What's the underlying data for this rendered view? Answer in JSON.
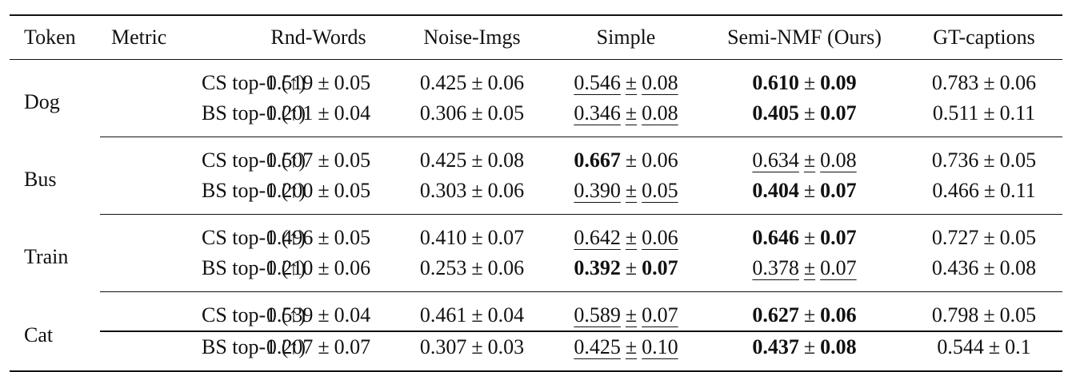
{
  "table": {
    "columns": [
      "Token",
      "Metric",
      "Rnd-Words",
      "Noise-Imgs",
      "Simple",
      "Semi-NMF (Ours)",
      "GT-captions"
    ],
    "pm_symbol": "±",
    "groups": [
      {
        "token": "Dog",
        "rows": [
          {
            "metric": "CS top-1 (↑)",
            "cells": [
              {
                "mean": "0.519",
                "std": "0.05"
              },
              {
                "mean": "0.425",
                "std": "0.06"
              },
              {
                "mean": "0.546",
                "std": "0.08",
                "underline": true
              },
              {
                "mean": "0.610",
                "std": "0.09",
                "bold_mean": true,
                "bold_std": true
              },
              {
                "mean": "0.783",
                "std": "0.06"
              }
            ]
          },
          {
            "metric": "BS top-1 (↑)",
            "cells": [
              {
                "mean": "0.201",
                "std": "0.04"
              },
              {
                "mean": "0.306",
                "std": "0.05"
              },
              {
                "mean": "0.346",
                "std": "0.08",
                "underline": true
              },
              {
                "mean": "0.405",
                "std": "0.07",
                "bold_mean": true,
                "bold_std": true
              },
              {
                "mean": "0.511",
                "std": "0.11"
              }
            ]
          }
        ]
      },
      {
        "token": "Bus",
        "rows": [
          {
            "metric": "CS top-1 (↑)",
            "cells": [
              {
                "mean": "0.507",
                "std": "0.05"
              },
              {
                "mean": "0.425",
                "std": "0.08"
              },
              {
                "mean": "0.667",
                "std": "0.06",
                "bold_mean": true
              },
              {
                "mean": "0.634",
                "std": "0.08",
                "underline": true
              },
              {
                "mean": "0.736",
                "std": "0.05"
              }
            ]
          },
          {
            "metric": "BS top-1 (↑)",
            "cells": [
              {
                "mean": "0.200",
                "std": "0.05"
              },
              {
                "mean": "0.303",
                "std": "0.06"
              },
              {
                "mean": "0.390",
                "std": "0.05",
                "underline": true
              },
              {
                "mean": "0.404",
                "std": "0.07",
                "bold_mean": true,
                "bold_std": true
              },
              {
                "mean": "0.466",
                "std": "0.11"
              }
            ]
          }
        ]
      },
      {
        "token": "Train",
        "rows": [
          {
            "metric": "CS top-1 (↑)",
            "cells": [
              {
                "mean": "0.496",
                "std": "0.05"
              },
              {
                "mean": "0.410",
                "std": "0.07"
              },
              {
                "mean": "0.642",
                "std": "0.06",
                "underline": true
              },
              {
                "mean": "0.646",
                "std": "0.07",
                "bold_mean": true,
                "bold_std": true
              },
              {
                "mean": "0.727",
                "std": "0.05"
              }
            ]
          },
          {
            "metric": "BS top-1 (↑)",
            "cells": [
              {
                "mean": "0.210",
                "std": "0.06"
              },
              {
                "mean": "0.253",
                "std": "0.06"
              },
              {
                "mean": "0.392",
                "std": "0.07",
                "bold_mean": true,
                "bold_std": true
              },
              {
                "mean": "0.378",
                "std": "0.07",
                "underline": true
              },
              {
                "mean": "0.436",
                "std": "0.08"
              }
            ]
          }
        ]
      },
      {
        "token": "Cat",
        "rows": [
          {
            "metric": "CS top-1 (↑)",
            "cells": [
              {
                "mean": "0.539",
                "std": "0.04"
              },
              {
                "mean": "0.461",
                "std": "0.04"
              },
              {
                "mean": "0.589",
                "std": "0.07",
                "underline": true
              },
              {
                "mean": "0.627",
                "std": "0.06",
                "bold_mean": true,
                "bold_std": true
              },
              {
                "mean": "0.798",
                "std": "0.05"
              }
            ]
          },
          {
            "metric": "BS top-1 (↑)",
            "cells": [
              {
                "mean": "0.207",
                "std": "0.07"
              },
              {
                "mean": "0.307",
                "std": "0.03"
              },
              {
                "mean": "0.425",
                "std": "0.10",
                "underline": true
              },
              {
                "mean": "0.437",
                "std": "0.08",
                "bold_mean": true,
                "bold_std": true
              },
              {
                "mean": "0.544",
                "std": "0.1"
              }
            ]
          }
        ]
      }
    ]
  }
}
